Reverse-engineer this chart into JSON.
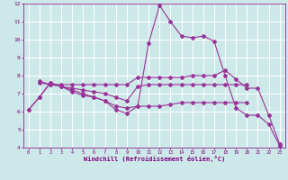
{
  "lines": [
    {
      "x": [
        0,
        1,
        2,
        3,
        4,
        5,
        6,
        7,
        8,
        9,
        10,
        11,
        12,
        13,
        14,
        15,
        16,
        17,
        18,
        19,
        20,
        21,
        22,
        23
      ],
      "y": [
        6.1,
        6.8,
        7.6,
        7.4,
        7.2,
        7.0,
        6.8,
        6.6,
        6.1,
        5.9,
        6.3,
        9.8,
        11.9,
        11.0,
        10.2,
        10.1,
        10.2,
        9.9,
        8.0,
        6.2,
        5.8,
        5.8,
        5.3,
        4.1
      ],
      "color": "#993399",
      "linewidth": 0.8,
      "marker": "D",
      "markersize": 2.0
    },
    {
      "x": [
        1,
        2,
        3,
        4,
        5,
        6,
        7,
        8,
        9,
        10,
        11,
        12,
        13,
        14,
        15,
        16,
        17,
        18,
        19,
        20,
        21,
        22,
        23
      ],
      "y": [
        7.7,
        7.5,
        7.5,
        7.5,
        7.5,
        7.5,
        7.5,
        7.5,
        7.5,
        7.9,
        7.9,
        7.9,
        7.9,
        7.9,
        8.0,
        8.0,
        8.0,
        8.3,
        7.8,
        7.3,
        7.3,
        5.8,
        4.2
      ],
      "color": "#993399",
      "linewidth": 0.8,
      "marker": "D",
      "markersize": 2.0
    },
    {
      "x": [
        1,
        2,
        3,
        4,
        5,
        6,
        7,
        8,
        9,
        10,
        11,
        12,
        13,
        14,
        15,
        16,
        17,
        18,
        19,
        20
      ],
      "y": [
        7.6,
        7.5,
        7.4,
        7.3,
        7.2,
        7.1,
        7.0,
        6.8,
        6.6,
        7.4,
        7.5,
        7.5,
        7.5,
        7.5,
        7.5,
        7.5,
        7.5,
        7.5,
        7.5,
        7.5
      ],
      "color": "#993399",
      "linewidth": 0.8,
      "marker": "D",
      "markersize": 2.0
    },
    {
      "x": [
        0,
        1,
        2,
        3,
        4,
        5,
        6,
        7,
        8,
        9,
        10,
        11,
        12,
        13,
        14,
        15,
        16,
        17,
        18,
        19,
        20
      ],
      "y": [
        6.1,
        6.8,
        7.6,
        7.4,
        7.1,
        6.9,
        6.8,
        6.6,
        6.3,
        6.2,
        6.3,
        6.3,
        6.3,
        6.4,
        6.5,
        6.5,
        6.5,
        6.5,
        6.5,
        6.5,
        6.5
      ],
      "color": "#993399",
      "linewidth": 0.8,
      "marker": "D",
      "markersize": 2.0
    }
  ],
  "xlim": [
    -0.5,
    23.5
  ],
  "ylim": [
    4,
    12
  ],
  "xticks": [
    0,
    1,
    2,
    3,
    4,
    5,
    6,
    7,
    8,
    9,
    10,
    11,
    12,
    13,
    14,
    15,
    16,
    17,
    18,
    19,
    20,
    21,
    22,
    23
  ],
  "yticks": [
    4,
    5,
    6,
    7,
    8,
    9,
    10,
    11,
    12
  ],
  "xlabel": "Windchill (Refroidissement éolien,°C)",
  "background_color": "#cce8e8",
  "grid_color": "#ffffff",
  "tick_color": "#800080",
  "label_color": "#800080",
  "spine_color": "#800080"
}
